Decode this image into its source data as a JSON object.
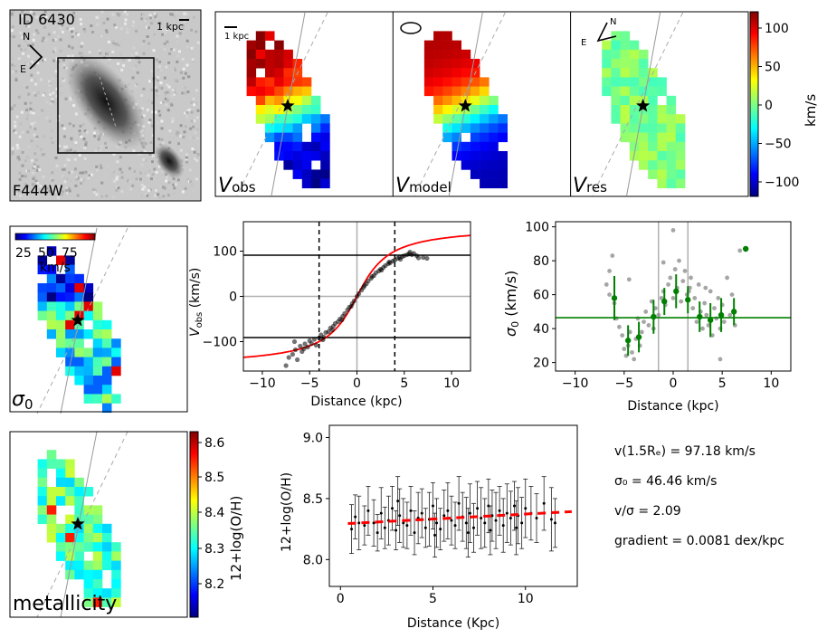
{
  "galaxy": {
    "id_label": "ID 6430",
    "filter_label": "F444W",
    "scale_bar_label": "1 kpc",
    "compass_n": "N",
    "compass_e": "E"
  },
  "velocity_maps": {
    "panels": [
      {
        "symbol": "V",
        "subscript": "obs"
      },
      {
        "symbol": "V",
        "subscript": "model"
      },
      {
        "symbol": "V",
        "subscript": "res"
      }
    ],
    "scale_bar_label": "1 kpc",
    "compass_n": "N",
    "compass_e": "E",
    "colorbar": {
      "label": "km/s",
      "ticks": [
        "100",
        "50",
        "0",
        "−50",
        "−100"
      ],
      "range": [
        -120,
        120
      ]
    }
  },
  "sigma_map": {
    "label_symbol": "σ",
    "label_sub": "0",
    "colorbar": {
      "ticks": [
        "25",
        "50",
        "75"
      ],
      "unit": "km/s"
    }
  },
  "metallicity_map": {
    "label": "metallicity",
    "colorbar": {
      "label": "12+log(O/H)",
      "ticks": [
        "8.6",
        "8.5",
        "8.4",
        "8.3",
        "8.2"
      ],
      "range": [
        8.13,
        8.63
      ]
    }
  },
  "chart_data": [
    {
      "id": "rotation_curve",
      "type": "scatter",
      "title": "",
      "xlabel": "Distance (kpc)",
      "ylabel": "V",
      "ylabel_sub": "obs",
      "ylabel_unit": " (km/s)",
      "xlim": [
        -12,
        12
      ],
      "ylim": [
        -165,
        165
      ],
      "xticks": [
        -10,
        -5,
        0,
        5,
        10
      ],
      "yticks": [
        -100,
        0,
        100
      ],
      "hlines": [
        91,
        -91
      ],
      "vlines_dashed": [
        -4,
        4
      ],
      "model_curve": {
        "vmax": 155,
        "rt": 2.5,
        "color": "#ff0000"
      },
      "points": [
        [
          -7.5,
          -153
        ],
        [
          -7.2,
          -135
        ],
        [
          -6.8,
          -128
        ],
        [
          -6.5,
          -118
        ],
        [
          -6.3,
          -140
        ],
        [
          -6.0,
          -110
        ],
        [
          -5.8,
          -122
        ],
        [
          -5.5,
          -105
        ],
        [
          -5.2,
          -112
        ],
        [
          -5.0,
          -98
        ],
        [
          -4.8,
          -104
        ],
        [
          -4.5,
          -95
        ],
        [
          -4.3,
          -108
        ],
        [
          -4.0,
          -92
        ],
        [
          -3.8,
          -85
        ],
        [
          -3.5,
          -90
        ],
        [
          -3.3,
          -80
        ],
        [
          -3.0,
          -78
        ],
        [
          -2.8,
          -70
        ],
        [
          -2.5,
          -66
        ],
        [
          -2.3,
          -60
        ],
        [
          -2.0,
          -56
        ],
        [
          -1.8,
          -50
        ],
        [
          -1.5,
          -44
        ],
        [
          -1.3,
          -38
        ],
        [
          -1.0,
          -30
        ],
        [
          -0.8,
          -24
        ],
        [
          -0.5,
          -16
        ],
        [
          -0.3,
          -10
        ],
        [
          0.0,
          0
        ],
        [
          0.2,
          6
        ],
        [
          0.5,
          14
        ],
        [
          0.7,
          20
        ],
        [
          1.0,
          28
        ],
        [
          1.2,
          34
        ],
        [
          1.5,
          40
        ],
        [
          1.8,
          46
        ],
        [
          2.0,
          52
        ],
        [
          2.3,
          56
        ],
        [
          2.5,
          60
        ],
        [
          2.8,
          64
        ],
        [
          3.0,
          68
        ],
        [
          3.3,
          72
        ],
        [
          3.5,
          74
        ],
        [
          3.8,
          78
        ],
        [
          4.0,
          80
        ],
        [
          4.3,
          84
        ],
        [
          4.5,
          86
        ],
        [
          4.8,
          88
        ],
        [
          5.0,
          90
        ],
        [
          5.3,
          92
        ],
        [
          5.5,
          94
        ],
        [
          5.8,
          92
        ],
        [
          6.0,
          95
        ],
        [
          6.3,
          90
        ],
        [
          6.5,
          85
        ],
        [
          7.0,
          86
        ],
        [
          7.4,
          84
        ],
        [
          -2.6,
          -74
        ],
        [
          -1.6,
          -52
        ],
        [
          -0.6,
          -22
        ],
        [
          0.8,
          24
        ],
        [
          1.6,
          44
        ],
        [
          2.6,
          58
        ],
        [
          3.4,
          76
        ],
        [
          4.6,
          82
        ],
        [
          5.6,
          98
        ],
        [
          -3.6,
          -96
        ],
        [
          -5.6,
          -116
        ],
        [
          -6.6,
          -100
        ]
      ]
    },
    {
      "id": "dispersion",
      "type": "scatter",
      "title": "",
      "xlabel": "Distance (kpc)",
      "ylabel": "σ",
      "ylabel_sub": "0",
      "ylabel_unit": " (km/s)",
      "xlim": [
        -12,
        12
      ],
      "ylim": [
        15,
        103
      ],
      "xticks": [
        -10,
        -5,
        0,
        5,
        10
      ],
      "yticks": [
        20,
        40,
        60,
        80,
        100
      ],
      "hline": 46.46,
      "vlines": [
        -1.5,
        1.5
      ],
      "binned": [
        {
          "x": -6.0,
          "y": 58,
          "err": 13
        },
        {
          "x": -4.6,
          "y": 33,
          "err": 9
        },
        {
          "x": -3.5,
          "y": 35,
          "err": 9
        },
        {
          "x": -2.0,
          "y": 47,
          "err": 10
        },
        {
          "x": -0.9,
          "y": 56,
          "err": 8
        },
        {
          "x": 0.3,
          "y": 62,
          "err": 10
        },
        {
          "x": 1.5,
          "y": 57,
          "err": 8
        },
        {
          "x": 2.7,
          "y": 47,
          "err": 9
        },
        {
          "x": 3.8,
          "y": 45,
          "err": 10
        },
        {
          "x": 4.9,
          "y": 48,
          "err": 10
        },
        {
          "x": 6.2,
          "y": 50,
          "err": 8
        },
        {
          "x": 7.4,
          "y": 87,
          "err": 0
        }
      ],
      "points": [
        [
          -6.8,
          66
        ],
        [
          -6.5,
          74
        ],
        [
          -6.2,
          83
        ],
        [
          -6.0,
          55
        ],
        [
          -5.8,
          46
        ],
        [
          -5.5,
          41
        ],
        [
          -5.2,
          36
        ],
        [
          -5.0,
          28
        ],
        [
          -4.8,
          24
        ],
        [
          -4.6,
          30
        ],
        [
          -4.4,
          38
        ],
        [
          -4.2,
          26
        ],
        [
          -4.0,
          22
        ],
        [
          -3.8,
          34
        ],
        [
          -3.6,
          46
        ],
        [
          -3.4,
          30
        ],
        [
          -3.2,
          38
        ],
        [
          -3.0,
          44
        ],
        [
          -2.8,
          50
        ],
        [
          -2.5,
          42
        ],
        [
          -2.2,
          56
        ],
        [
          -2.0,
          40
        ],
        [
          -1.8,
          52
        ],
        [
          -1.5,
          48
        ],
        [
          -1.2,
          58
        ],
        [
          -1.0,
          62
        ],
        [
          -0.8,
          54
        ],
        [
          -0.5,
          66
        ],
        [
          -0.3,
          70
        ],
        [
          0.0,
          58
        ],
        [
          0.2,
          75
        ],
        [
          0.4,
          64
        ],
        [
          0.6,
          80
        ],
        [
          0.8,
          56
        ],
        [
          1.0,
          68
        ],
        [
          1.2,
          74
        ],
        [
          1.4,
          60
        ],
        [
          1.6,
          62
        ],
        [
          1.8,
          70
        ],
        [
          2.0,
          52
        ],
        [
          2.2,
          58
        ],
        [
          2.4,
          44
        ],
        [
          2.6,
          66
        ],
        [
          2.8,
          50
        ],
        [
          3.0,
          40
        ],
        [
          3.2,
          55
        ],
        [
          3.4,
          48
        ],
        [
          3.6,
          42
        ],
        [
          3.8,
          62
        ],
        [
          4.0,
          36
        ],
        [
          4.2,
          52
        ],
        [
          4.4,
          46
        ],
        [
          4.6,
          58
        ],
        [
          4.8,
          40
        ],
        [
          5.0,
          54
        ],
        [
          5.2,
          44
        ],
        [
          5.5,
          70
        ],
        [
          5.8,
          48
        ],
        [
          6.0,
          60
        ],
        [
          6.3,
          42
        ],
        [
          0.0,
          98
        ],
        [
          4.8,
          22
        ],
        [
          -1.0,
          79
        ],
        [
          1.7,
          64
        ],
        [
          3.3,
          64
        ],
        [
          -4.5,
          69
        ],
        [
          -6.5,
          60
        ],
        [
          6.8,
          86
        ]
      ]
    },
    {
      "id": "metallicity_gradient",
      "type": "scatter",
      "title": "",
      "xlabel": "Distance (Kpc)",
      "ylabel": "12+log(O/H)",
      "xlim": [
        -0.6,
        12.8
      ],
      "ylim": [
        7.78,
        9.1
      ],
      "xticks": [
        0,
        5,
        10
      ],
      "yticks": [
        8.0,
        8.5,
        9.0
      ],
      "fit": {
        "x0": 0.4,
        "y0": 8.295,
        "x1": 12.5,
        "y1": 8.393
      },
      "points": [
        [
          0.6,
          8.25,
          0.2
        ],
        [
          0.8,
          8.35,
          0.18
        ],
        [
          1.0,
          8.3,
          0.22
        ],
        [
          1.3,
          8.28,
          0.16
        ],
        [
          1.5,
          8.4,
          0.2
        ],
        [
          1.8,
          8.3,
          0.19
        ],
        [
          2.0,
          8.22,
          0.15
        ],
        [
          2.2,
          8.38,
          0.21
        ],
        [
          2.4,
          8.26,
          0.17
        ],
        [
          2.6,
          8.32,
          0.2
        ],
        [
          2.8,
          8.42,
          0.18
        ],
        [
          3.0,
          8.24,
          0.16
        ],
        [
          3.2,
          8.36,
          0.22
        ],
        [
          3.4,
          8.3,
          0.2
        ],
        [
          3.6,
          8.28,
          0.19
        ],
        [
          3.8,
          8.4,
          0.2
        ],
        [
          4.0,
          8.22,
          0.18
        ],
        [
          4.2,
          8.34,
          0.21
        ],
        [
          4.4,
          8.38,
          0.2
        ],
        [
          4.6,
          8.26,
          0.16
        ],
        [
          4.8,
          8.33,
          0.22
        ],
        [
          5.0,
          8.44,
          0.19
        ],
        [
          5.2,
          8.3,
          0.2
        ],
        [
          5.4,
          8.25,
          0.17
        ],
        [
          5.6,
          8.36,
          0.21
        ],
        [
          5.8,
          8.4,
          0.23
        ],
        [
          6.0,
          8.32,
          0.2
        ],
        [
          6.2,
          8.28,
          0.19
        ],
        [
          6.4,
          8.46,
          0.22
        ],
        [
          6.6,
          8.35,
          0.2
        ],
        [
          6.8,
          8.3,
          0.21
        ],
        [
          7.0,
          8.38,
          0.24
        ],
        [
          7.2,
          8.26,
          0.2
        ],
        [
          7.4,
          8.42,
          0.22
        ],
        [
          7.6,
          8.34,
          0.25
        ],
        [
          7.8,
          8.3,
          0.2
        ],
        [
          8.0,
          8.44,
          0.22
        ],
        [
          8.2,
          8.36,
          0.21
        ],
        [
          8.4,
          8.32,
          0.23
        ],
        [
          8.6,
          8.4,
          0.2
        ],
        [
          8.8,
          8.28,
          0.22
        ],
        [
          9.0,
          8.38,
          0.24
        ],
        [
          9.2,
          8.34,
          0.22
        ],
        [
          9.4,
          8.44,
          0.2
        ],
        [
          9.6,
          8.36,
          0.23
        ],
        [
          9.8,
          8.3,
          0.21
        ],
        [
          10.0,
          8.42,
          0.24
        ],
        [
          10.3,
          8.38,
          0.22
        ],
        [
          10.6,
          8.34,
          0.2
        ],
        [
          11.0,
          8.46,
          0.22
        ],
        [
          11.4,
          8.33,
          0.26
        ],
        [
          11.6,
          8.3,
          0.2
        ],
        [
          3.1,
          8.48,
          0.2
        ],
        [
          5.1,
          8.2,
          0.18
        ],
        [
          6.9,
          8.22,
          0.2
        ],
        [
          8.1,
          8.24,
          0.2
        ],
        [
          9.5,
          8.26,
          0.22
        ]
      ]
    }
  ],
  "stats": {
    "vrot": "v(1.5Rₑ) = 97.18 km/s",
    "sigma": "σ₀ = 46.46 km/s",
    "vsigma": "v/σ = 2.09",
    "gradient": "gradient = 0.0081 dex/kpc"
  }
}
